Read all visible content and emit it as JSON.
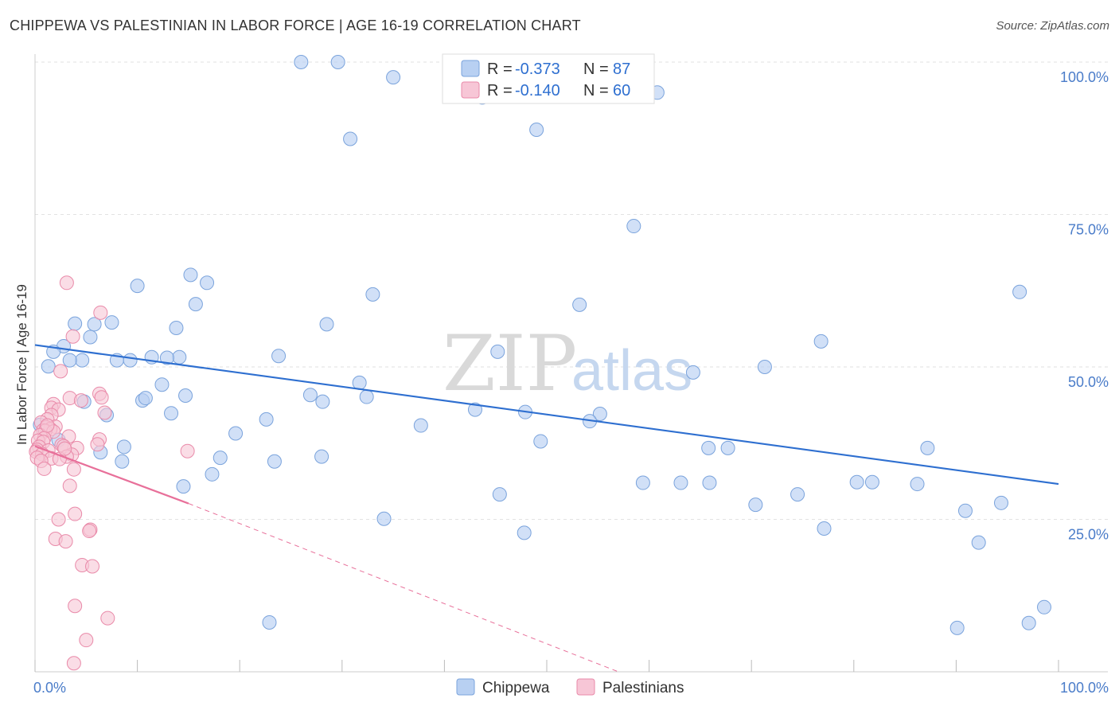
{
  "chart_data": {
    "type": "scatter",
    "title": "CHIPPEWA VS PALESTINIAN IN LABOR FORCE | AGE 16-19 CORRELATION CHART",
    "source": "Source: ZipAtlas.com",
    "ylabel": "In Labor Force | Age 16-19",
    "xlabel": "",
    "xlim": [
      0,
      100
    ],
    "ylim": [
      0,
      100
    ],
    "x_tick_labels": [
      "0.0%",
      "100.0%"
    ],
    "y_tick_labels": [
      "100.0%",
      "75.0%",
      "50.0%",
      "25.0%"
    ],
    "y_tick_values": [
      100,
      75,
      50,
      25
    ],
    "watermark": {
      "zip": "ZIP",
      "atlas": "atlas"
    },
    "legend": [
      {
        "r_label": "R = ",
        "r_value": "-0.373",
        "n_label": "N = ",
        "n_value": "87"
      },
      {
        "r_label": "R = ",
        "r_value": "-0.140",
        "n_label": "N = ",
        "n_value": "60"
      }
    ],
    "colors": {
      "chippewa_fill": "#b8d0f2",
      "chippewa_stroke": "#7aa3dc",
      "chippewa_line": "#2e6fd0",
      "palestinian_fill": "#f7c6d6",
      "palestinian_stroke": "#e98aa9",
      "palestinian_line": "#e8709a"
    },
    "series": [
      {
        "name": "Chippewa",
        "trend": {
          "x0": 0,
          "y0": 53.6,
          "x1": 100,
          "y1": 30.8
        },
        "points": [
          [
            26.0,
            100.0
          ],
          [
            29.6,
            100.0
          ],
          [
            43.7,
            94.2
          ],
          [
            49.0,
            88.9
          ],
          [
            30.8,
            87.4
          ],
          [
            58.5,
            73.1
          ],
          [
            96.2,
            62.3
          ],
          [
            15.2,
            65.1
          ],
          [
            16.8,
            63.8
          ],
          [
            10.0,
            63.3
          ],
          [
            15.7,
            60.3
          ],
          [
            33.0,
            61.9
          ],
          [
            53.2,
            60.2
          ],
          [
            3.9,
            57.1
          ],
          [
            7.5,
            57.3
          ],
          [
            5.8,
            57.0
          ],
          [
            13.8,
            56.4
          ],
          [
            28.5,
            57.0
          ],
          [
            5.4,
            54.9
          ],
          [
            2.8,
            53.4
          ],
          [
            1.8,
            52.5
          ],
          [
            76.8,
            54.2
          ],
          [
            45.2,
            52.5
          ],
          [
            14.1,
            51.6
          ],
          [
            11.4,
            51.6
          ],
          [
            12.9,
            51.5
          ],
          [
            8.0,
            51.1
          ],
          [
            9.3,
            51.1
          ],
          [
            4.6,
            51.1
          ],
          [
            3.4,
            51.1
          ],
          [
            23.8,
            51.8
          ],
          [
            1.3,
            50.1
          ],
          [
            71.3,
            50.0
          ],
          [
            64.3,
            49.1
          ],
          [
            31.7,
            47.4
          ],
          [
            12.4,
            47.1
          ],
          [
            14.7,
            45.3
          ],
          [
            26.9,
            45.4
          ],
          [
            32.4,
            45.1
          ],
          [
            10.5,
            44.5
          ],
          [
            10.8,
            44.9
          ],
          [
            28.1,
            44.3
          ],
          [
            4.8,
            44.3
          ],
          [
            13.3,
            42.4
          ],
          [
            7.0,
            42.1
          ],
          [
            22.6,
            41.4
          ],
          [
            47.9,
            42.6
          ],
          [
            55.2,
            42.3
          ],
          [
            54.2,
            41.1
          ],
          [
            37.7,
            40.4
          ],
          [
            43.0,
            43.0
          ],
          [
            19.6,
            39.1
          ],
          [
            49.4,
            37.8
          ],
          [
            8.7,
            36.9
          ],
          [
            6.4,
            36.0
          ],
          [
            65.8,
            36.7
          ],
          [
            67.7,
            36.7
          ],
          [
            87.2,
            36.7
          ],
          [
            28.0,
            35.3
          ],
          [
            18.1,
            35.1
          ],
          [
            23.4,
            34.5
          ],
          [
            8.5,
            34.5
          ],
          [
            17.3,
            32.4
          ],
          [
            14.5,
            30.4
          ],
          [
            59.4,
            31.0
          ],
          [
            63.1,
            31.0
          ],
          [
            65.9,
            31.0
          ],
          [
            80.3,
            31.1
          ],
          [
            81.8,
            31.1
          ],
          [
            86.2,
            30.8
          ],
          [
            45.4,
            29.1
          ],
          [
            74.5,
            29.1
          ],
          [
            70.4,
            27.4
          ],
          [
            94.4,
            27.7
          ],
          [
            90.9,
            26.4
          ],
          [
            34.1,
            25.1
          ],
          [
            77.1,
            23.5
          ],
          [
            47.8,
            22.8
          ],
          [
            92.2,
            21.2
          ],
          [
            98.6,
            10.6
          ],
          [
            97.1,
            8.0
          ],
          [
            22.9,
            8.1
          ],
          [
            90.1,
            7.2
          ],
          [
            35.0,
            97.5
          ],
          [
            60.8,
            95.0
          ],
          [
            0.5,
            40.5
          ],
          [
            2.3,
            38.0
          ]
        ]
      },
      {
        "name": "Palestinians",
        "trend": {
          "x0": 0,
          "y0": 37.0,
          "x1": 15.0,
          "y1": 27.6
        },
        "trend_dashed": {
          "x0": 15.0,
          "y0": 27.6,
          "x1": 57.0,
          "y1": 0.0
        },
        "points": [
          [
            3.1,
            63.8
          ],
          [
            6.4,
            58.9
          ],
          [
            3.7,
            55.0
          ],
          [
            2.5,
            49.3
          ],
          [
            6.3,
            45.6
          ],
          [
            6.5,
            45.0
          ],
          [
            3.4,
            44.9
          ],
          [
            4.5,
            44.5
          ],
          [
            1.8,
            43.9
          ],
          [
            1.6,
            43.3
          ],
          [
            2.3,
            43.0
          ],
          [
            6.8,
            42.5
          ],
          [
            1.6,
            42.1
          ],
          [
            1.2,
            41.4
          ],
          [
            0.6,
            40.9
          ],
          [
            2.0,
            40.2
          ],
          [
            1.1,
            40.1
          ],
          [
            1.5,
            39.8
          ],
          [
            0.8,
            39.6
          ],
          [
            1.0,
            39.5
          ],
          [
            1.8,
            39.4
          ],
          [
            0.5,
            38.8
          ],
          [
            3.3,
            38.6
          ],
          [
            0.9,
            38.3
          ],
          [
            6.3,
            38.1
          ],
          [
            0.3,
            37.9
          ],
          [
            0.8,
            37.7
          ],
          [
            2.6,
            37.2
          ],
          [
            2.8,
            37.0
          ],
          [
            6.1,
            37.3
          ],
          [
            0.4,
            36.9
          ],
          [
            4.1,
            36.7
          ],
          [
            0.2,
            36.4
          ],
          [
            1.3,
            36.3
          ],
          [
            0.1,
            36.1
          ],
          [
            14.9,
            36.2
          ],
          [
            0.7,
            35.7
          ],
          [
            3.6,
            35.6
          ],
          [
            3.1,
            35.3
          ],
          [
            0.2,
            35.1
          ],
          [
            1.6,
            35.0
          ],
          [
            2.4,
            34.9
          ],
          [
            0.6,
            34.6
          ],
          [
            3.8,
            33.2
          ],
          [
            0.9,
            33.3
          ],
          [
            3.4,
            30.5
          ],
          [
            3.9,
            25.9
          ],
          [
            2.3,
            25.0
          ],
          [
            5.4,
            23.3
          ],
          [
            5.3,
            23.1
          ],
          [
            2.0,
            21.8
          ],
          [
            3.0,
            21.4
          ],
          [
            4.6,
            17.5
          ],
          [
            5.6,
            17.3
          ],
          [
            3.9,
            10.8
          ],
          [
            7.1,
            8.8
          ],
          [
            5.0,
            5.2
          ],
          [
            3.8,
            1.4
          ],
          [
            1.2,
            40.4
          ],
          [
            2.9,
            36.6
          ]
        ]
      }
    ]
  },
  "bottom_legend": [
    "Chippewa",
    "Palestinians"
  ]
}
